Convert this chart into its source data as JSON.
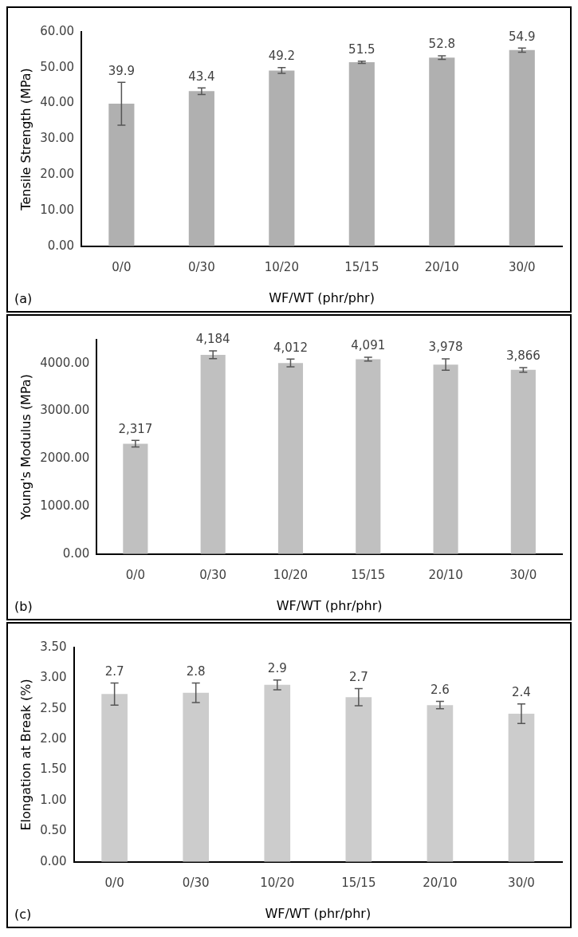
{
  "chart_data": [
    {
      "type": "bar",
      "xlabel": "WF/WT (phr/phr)",
      "ylabel": "Tensile Strength (MPa)",
      "categories": [
        "0/0",
        "0/30",
        "10/20",
        "15/15",
        "20/10",
        "30/0"
      ],
      "values": [
        39.9,
        43.4,
        49.2,
        51.5,
        52.8,
        54.9
      ],
      "errors": [
        6,
        0.9,
        0.8,
        0.3,
        0.5,
        0.6
      ],
      "color": "#b0b0b0",
      "ylim": [
        0,
        60
      ],
      "yticks": [
        {
          "value": 0,
          "label": "0.00"
        },
        {
          "value": 10,
          "label": "10.00"
        },
        {
          "value": 20,
          "label": "20.00"
        },
        {
          "value": 30,
          "label": "30.00"
        },
        {
          "value": 40,
          "label": "40.00"
        },
        {
          "value": 50,
          "label": "50.00"
        },
        {
          "value": 60,
          "label": "60.00"
        }
      ],
      "data_labels": true,
      "grid": false,
      "legend": false,
      "annotations": [
        "(a)"
      ]
    },
    {
      "type": "bar",
      "xlabel": "WF/WT (phr/phr)",
      "ylabel": "Young's Modulus (MPa)",
      "categories": [
        "0/0",
        "0/30",
        "10/20",
        "15/15",
        "20/10",
        "30/0"
      ],
      "values": [
        2317,
        4184,
        4012,
        4091,
        3978,
        3866
      ],
      "value_labels": [
        "2,317",
        "4,184",
        "4,012",
        "4,091",
        "3,978",
        "3,866"
      ],
      "errors": [
        70,
        80,
        80,
        40,
        120,
        50
      ],
      "color": "#c0c0c0",
      "ylim": [
        0,
        4500
      ],
      "yticks": [
        {
          "value": 0,
          "label": "0.00"
        },
        {
          "value": 1000,
          "label": "1000.00"
        },
        {
          "value": 2000,
          "label": "2000.00"
        },
        {
          "value": 3000,
          "label": "3000.00"
        },
        {
          "value": 4000,
          "label": "4000.00"
        }
      ],
      "grid": false,
      "legend": false,
      "annotations": [
        "(b)"
      ]
    },
    {
      "type": "bar",
      "xlabel": "WF/WT (phr/phr)",
      "ylabel": "Elongation at Break (%)",
      "categories": [
        "0/0",
        "0/30",
        "10/20",
        "15/15",
        "20/10",
        "30/0"
      ],
      "values": [
        2.74,
        2.76,
        2.89,
        2.69,
        2.56,
        2.42
      ],
      "value_labels": [
        "2.7",
        "2.8",
        "2.9",
        "2.7",
        "2.6",
        "2.4"
      ],
      "errors": [
        0.18,
        0.16,
        0.08,
        0.14,
        0.06,
        0.16
      ],
      "color": "#cccccc",
      "ylim": [
        0,
        3.5
      ],
      "yticks": [
        {
          "value": 0,
          "label": "0.00"
        },
        {
          "value": 0.5,
          "label": "0.50"
        },
        {
          "value": 1,
          "label": "1.00"
        },
        {
          "value": 1.5,
          "label": "1.50"
        },
        {
          "value": 2,
          "label": "2.00"
        },
        {
          "value": 2.5,
          "label": "2.50"
        },
        {
          "value": 3,
          "label": "3.00"
        },
        {
          "value": 3.5,
          "label": "3.50"
        }
      ],
      "grid": false,
      "legend": false,
      "annotations": [
        "(c)"
      ]
    }
  ]
}
